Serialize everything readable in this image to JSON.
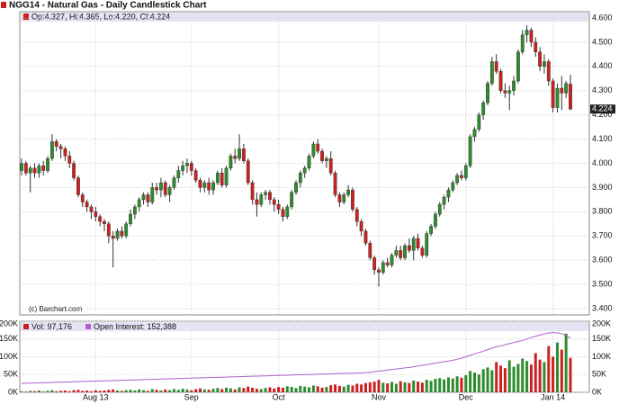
{
  "header": {
    "title": "NGG14 - Natural Gas - Daily Candlestick Chart",
    "ohlc_legend": "Op:4.327, Hi:4.365, Lo:4.220, Cl:4.224",
    "copyright": "(c) Barchart.com"
  },
  "chart_data": [
    {
      "type": "candlestick",
      "last_value_label": "4.224",
      "colors": {
        "up": "#2e8b2e",
        "down": "#cc2020",
        "wick": "#333333"
      },
      "categories": [
        null,
        null,
        null,
        null,
        null,
        null,
        null,
        null,
        null,
        null,
        null,
        null,
        null,
        null,
        null,
        null,
        null,
        "Aug 13",
        null,
        null,
        null,
        null,
        null,
        null,
        null,
        null,
        null,
        null,
        null,
        null,
        null,
        null,
        null,
        null,
        null,
        null,
        null,
        null,
        null,
        "Sep",
        null,
        null,
        null,
        null,
        null,
        null,
        null,
        null,
        null,
        null,
        null,
        null,
        null,
        null,
        null,
        null,
        null,
        null,
        null,
        "Oct",
        null,
        null,
        null,
        null,
        null,
        null,
        null,
        null,
        null,
        null,
        null,
        null,
        null,
        null,
        null,
        null,
        null,
        null,
        null,
        null,
        null,
        null,
        "Nov",
        null,
        null,
        null,
        null,
        null,
        null,
        null,
        null,
        null,
        null,
        null,
        null,
        null,
        null,
        null,
        null,
        null,
        null,
        null,
        "Dec",
        null,
        null,
        null,
        null,
        null,
        null,
        null,
        null,
        null,
        null,
        null,
        null,
        null,
        null,
        null,
        null,
        null,
        null,
        null,
        "Jan 14",
        null,
        null,
        null,
        null
      ],
      "ohlc": [
        [
          3.97,
          4.02,
          3.95,
          4.0
        ],
        [
          4.0,
          4.01,
          3.95,
          3.96
        ],
        [
          3.96,
          3.99,
          3.88,
          3.98
        ],
        [
          3.98,
          4.0,
          3.94,
          3.96
        ],
        [
          3.96,
          4.0,
          3.94,
          3.99
        ],
        [
          3.99,
          4.01,
          3.95,
          3.97
        ],
        [
          3.97,
          4.03,
          3.96,
          4.02
        ],
        [
          4.02,
          4.12,
          4.01,
          4.09
        ],
        [
          4.09,
          4.1,
          4.05,
          4.07
        ],
        [
          4.07,
          4.08,
          4.02,
          4.06
        ],
        [
          4.06,
          4.07,
          4.01,
          4.03
        ],
        [
          4.03,
          4.05,
          3.98,
          4.0
        ],
        [
          4.0,
          4.01,
          3.93,
          3.94
        ],
        [
          3.94,
          3.95,
          3.86,
          3.87
        ],
        [
          3.87,
          3.88,
          3.82,
          3.84
        ],
        [
          3.84,
          3.85,
          3.8,
          3.82
        ],
        [
          3.82,
          3.83,
          3.77,
          3.8
        ],
        [
          3.8,
          3.82,
          3.76,
          3.78
        ],
        [
          3.78,
          3.79,
          3.74,
          3.76
        ],
        [
          3.76,
          3.77,
          3.72,
          3.75
        ],
        [
          3.75,
          3.76,
          3.67,
          3.7
        ],
        [
          3.7,
          3.72,
          3.57,
          3.69
        ],
        [
          3.69,
          3.73,
          3.68,
          3.72
        ],
        [
          3.72,
          3.74,
          3.69,
          3.7
        ],
        [
          3.7,
          3.76,
          3.69,
          3.75
        ],
        [
          3.75,
          3.81,
          3.74,
          3.79
        ],
        [
          3.79,
          3.83,
          3.77,
          3.82
        ],
        [
          3.82,
          3.86,
          3.8,
          3.85
        ],
        [
          3.85,
          3.88,
          3.83,
          3.87
        ],
        [
          3.87,
          3.88,
          3.82,
          3.84
        ],
        [
          3.84,
          3.92,
          3.83,
          3.9
        ],
        [
          3.9,
          3.92,
          3.87,
          3.89
        ],
        [
          3.89,
          3.94,
          3.86,
          3.92
        ],
        [
          3.92,
          3.93,
          3.86,
          3.87
        ],
        [
          3.87,
          3.91,
          3.84,
          3.9
        ],
        [
          3.9,
          3.95,
          3.89,
          3.94
        ],
        [
          3.94,
          3.99,
          3.92,
          3.97
        ],
        [
          3.97,
          4.01,
          3.95,
          3.99
        ],
        [
          3.99,
          4.02,
          3.96,
          4.0
        ],
        [
          4.0,
          4.01,
          3.95,
          3.97
        ],
        [
          3.97,
          3.98,
          3.92,
          3.93
        ],
        [
          3.93,
          3.94,
          3.88,
          3.9
        ],
        [
          3.9,
          3.93,
          3.88,
          3.92
        ],
        [
          3.92,
          3.94,
          3.87,
          3.89
        ],
        [
          3.89,
          3.93,
          3.87,
          3.92
        ],
        [
          3.92,
          3.97,
          3.91,
          3.96
        ],
        [
          3.96,
          3.98,
          3.9,
          3.91
        ],
        [
          3.91,
          3.99,
          3.9,
          3.98
        ],
        [
          3.98,
          4.04,
          3.97,
          4.03
        ],
        [
          4.03,
          4.06,
          4.0,
          4.02
        ],
        [
          4.02,
          4.12,
          4.01,
          4.06
        ],
        [
          4.06,
          4.08,
          4.0,
          4.01
        ],
        [
          4.01,
          4.02,
          3.91,
          3.92
        ],
        [
          3.92,
          3.93,
          3.83,
          3.85
        ],
        [
          3.85,
          3.88,
          3.78,
          3.83
        ],
        [
          3.83,
          3.88,
          3.82,
          3.87
        ],
        [
          3.87,
          3.89,
          3.85,
          3.88
        ],
        [
          3.88,
          3.89,
          3.83,
          3.85
        ],
        [
          3.85,
          3.86,
          3.8,
          3.83
        ],
        [
          3.83,
          3.85,
          3.79,
          3.81
        ],
        [
          3.81,
          3.82,
          3.76,
          3.78
        ],
        [
          3.78,
          3.83,
          3.77,
          3.82
        ],
        [
          3.82,
          3.89,
          3.81,
          3.88
        ],
        [
          3.88,
          3.93,
          3.87,
          3.92
        ],
        [
          3.92,
          3.97,
          3.9,
          3.96
        ],
        [
          3.96,
          3.99,
          3.94,
          3.98
        ],
        [
          3.98,
          4.04,
          3.97,
          4.03
        ],
        [
          4.03,
          4.09,
          4.02,
          4.08
        ],
        [
          4.08,
          4.1,
          4.04,
          4.05
        ],
        [
          4.05,
          4.06,
          4.0,
          4.01
        ],
        [
          4.01,
          4.03,
          3.98,
          4.02
        ],
        [
          4.02,
          4.05,
          3.95,
          3.96
        ],
        [
          3.96,
          3.97,
          3.86,
          3.87
        ],
        [
          3.87,
          3.88,
          3.82,
          3.84
        ],
        [
          3.84,
          3.88,
          3.83,
          3.87
        ],
        [
          3.87,
          3.91,
          3.86,
          3.89
        ],
        [
          3.89,
          3.9,
          3.8,
          3.81
        ],
        [
          3.81,
          3.82,
          3.74,
          3.76
        ],
        [
          3.76,
          3.77,
          3.7,
          3.72
        ],
        [
          3.72,
          3.73,
          3.66,
          3.67
        ],
        [
          3.67,
          3.68,
          3.6,
          3.61
        ],
        [
          3.61,
          3.62,
          3.54,
          3.56
        ],
        [
          3.56,
          3.57,
          3.49,
          3.55
        ],
        [
          3.55,
          3.6,
          3.54,
          3.59
        ],
        [
          3.59,
          3.61,
          3.57,
          3.58
        ],
        [
          3.58,
          3.63,
          3.57,
          3.62
        ],
        [
          3.62,
          3.66,
          3.61,
          3.64
        ],
        [
          3.64,
          3.66,
          3.6,
          3.61
        ],
        [
          3.61,
          3.67,
          3.6,
          3.66
        ],
        [
          3.66,
          3.69,
          3.63,
          3.64
        ],
        [
          3.64,
          3.7,
          3.6,
          3.69
        ],
        [
          3.69,
          3.71,
          3.64,
          3.65
        ],
        [
          3.65,
          3.66,
          3.61,
          3.62
        ],
        [
          3.62,
          3.72,
          3.61,
          3.71
        ],
        [
          3.71,
          3.75,
          3.7,
          3.74
        ],
        [
          3.74,
          3.8,
          3.73,
          3.79
        ],
        [
          3.79,
          3.84,
          3.78,
          3.83
        ],
        [
          3.83,
          3.87,
          3.81,
          3.86
        ],
        [
          3.86,
          3.9,
          3.84,
          3.89
        ],
        [
          3.89,
          3.93,
          3.88,
          3.92
        ],
        [
          3.92,
          3.96,
          3.91,
          3.95
        ],
        [
          3.95,
          3.97,
          3.93,
          3.94
        ],
        [
          3.94,
          4.0,
          3.93,
          3.99
        ],
        [
          3.99,
          4.12,
          3.98,
          4.11
        ],
        [
          4.11,
          4.15,
          4.09,
          4.14
        ],
        [
          4.14,
          4.21,
          4.13,
          4.2
        ],
        [
          4.2,
          4.26,
          4.18,
          4.25
        ],
        [
          4.25,
          4.34,
          4.24,
          4.33
        ],
        [
          4.33,
          4.44,
          4.32,
          4.42
        ],
        [
          4.42,
          4.45,
          4.37,
          4.38
        ],
        [
          4.38,
          4.39,
          4.29,
          4.3
        ],
        [
          4.3,
          4.33,
          4.27,
          4.29
        ],
        [
          4.29,
          4.32,
          4.22,
          4.3
        ],
        [
          4.3,
          4.36,
          4.28,
          4.34
        ],
        [
          4.34,
          4.47,
          4.33,
          4.46
        ],
        [
          4.46,
          4.55,
          4.45,
          4.53
        ],
        [
          4.53,
          4.57,
          4.5,
          4.55
        ],
        [
          4.55,
          4.56,
          4.48,
          4.5
        ],
        [
          4.5,
          4.52,
          4.44,
          4.46
        ],
        [
          4.46,
          4.48,
          4.38,
          4.4
        ],
        [
          4.4,
          4.45,
          4.37,
          4.42
        ],
        [
          4.42,
          4.43,
          4.32,
          4.34
        ],
        [
          4.34,
          4.35,
          4.21,
          4.23
        ],
        [
          4.23,
          4.33,
          4.21,
          4.31
        ],
        [
          4.31,
          4.36,
          4.22,
          4.29
        ],
        [
          4.29,
          4.34,
          4.27,
          4.33
        ],
        [
          4.327,
          4.365,
          4.22,
          4.224
        ]
      ],
      "ylim": [
        3.4,
        4.6
      ],
      "yticks": [
        {
          "value": 3.4,
          "label": "3.400"
        },
        {
          "value": 3.5,
          "label": "3.500"
        },
        {
          "value": 3.6,
          "label": "3.600"
        },
        {
          "value": 3.7,
          "label": "3.700"
        },
        {
          "value": 3.8,
          "label": "3.800"
        },
        {
          "value": 3.9,
          "label": "3.900"
        },
        {
          "value": 4.0,
          "label": "4.000"
        },
        {
          "value": 4.1,
          "label": "4.100"
        },
        {
          "value": 4.2,
          "label": "4.200"
        },
        {
          "value": 4.3,
          "label": "4.300"
        },
        {
          "value": 4.4,
          "label": "4.400"
        },
        {
          "value": 4.5,
          "label": "4.500"
        },
        {
          "value": 4.6,
          "label": "4.600"
        }
      ],
      "grid": true
    },
    {
      "type": "volume",
      "series": [
        {
          "name": "Vol",
          "legend": "Vol: 97,176",
          "color": "#cc2020",
          "values": [
            3000,
            2000,
            4000,
            3000,
            5000,
            2000,
            4000,
            6000,
            3000,
            4000,
            5000,
            3000,
            6000,
            7000,
            4000,
            5000,
            3000,
            6000,
            4000,
            5000,
            7000,
            8000,
            5000,
            4000,
            6000,
            7000,
            5000,
            8000,
            6000,
            4000,
            9000,
            7000,
            5000,
            8000,
            6000,
            9000,
            7000,
            10000,
            8000,
            6000,
            9000,
            11000,
            8000,
            7000,
            10000,
            12000,
            9000,
            13000,
            11000,
            8000,
            14000,
            12000,
            16000,
            13000,
            10000,
            9000,
            12000,
            14000,
            11000,
            15000,
            13000,
            17000,
            15000,
            12000,
            18000,
            16000,
            14000,
            19000,
            17000,
            13000,
            15000,
            20000,
            22000,
            18000,
            16000,
            21000,
            19000,
            24000,
            22000,
            26000,
            28000,
            30000,
            35000,
            27000,
            25000,
            29000,
            24000,
            31000,
            28000,
            26000,
            33000,
            30000,
            27000,
            35000,
            32000,
            38000,
            40000,
            36000,
            42000,
            39000,
            45000,
            41000,
            48000,
            60000,
            55000,
            50000,
            65000,
            70000,
            62000,
            85000,
            75000,
            68000,
            90000,
            72000,
            80000,
            95000,
            88000,
            78000,
            110000,
            92000,
            85000,
            130000,
            100000,
            140000,
            120000,
            165000,
            97176
          ]
        },
        {
          "name": "Open Interest",
          "legend": "Open Interest: 152,388",
          "color": "#b060c8",
          "values": [
            25000,
            25400,
            25800,
            26200,
            26500,
            26900,
            27300,
            27700,
            28000,
            28400,
            28800,
            29200,
            29600,
            30000,
            30300,
            30700,
            31100,
            31500,
            31900,
            32200,
            32600,
            33000,
            33400,
            33800,
            34100,
            34500,
            34900,
            35300,
            35700,
            36000,
            36400,
            36800,
            37200,
            37600,
            37900,
            38300,
            38700,
            39100,
            39500,
            39800,
            40200,
            40600,
            41000,
            41400,
            41700,
            42100,
            42500,
            42900,
            43300,
            43600,
            44000,
            44400,
            44800,
            45200,
            45500,
            45900,
            46300,
            46700,
            47100,
            47400,
            47800,
            48200,
            48600,
            49000,
            49300,
            49700,
            50100,
            50500,
            50900,
            51200,
            51600,
            52000,
            52400,
            52800,
            53100,
            53500,
            53900,
            54300,
            54700,
            55000,
            56500,
            58000,
            59500,
            61000,
            62500,
            64000,
            65500,
            67000,
            68500,
            70000,
            72000,
            74000,
            76000,
            78000,
            80000,
            82000,
            84000,
            86000,
            88000,
            90000,
            93000,
            96000,
            100000,
            104000,
            108000,
            112000,
            116000,
            120000,
            124000,
            128000,
            131000,
            134000,
            137000,
            140000,
            143000,
            146000,
            150000,
            154000,
            158000,
            161000,
            164000,
            167000,
            168000,
            167000,
            165000,
            160000,
            152388
          ]
        }
      ],
      "ylim": [
        0,
        200000
      ],
      "yticks": [
        {
          "value": 0,
          "label": "0K"
        },
        {
          "value": 50000,
          "label": "50K"
        },
        {
          "value": 100000,
          "label": "100K"
        },
        {
          "value": 150000,
          "label": "150K"
        },
        {
          "value": 200000,
          "label": "200K"
        }
      ],
      "grid": true
    }
  ]
}
